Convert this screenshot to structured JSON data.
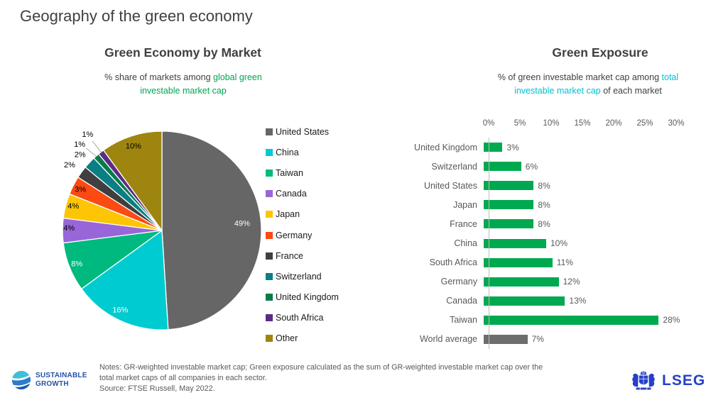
{
  "page": {
    "title": "Geography of the green economy"
  },
  "pie_panel": {
    "title": "Green Economy by Market",
    "subtitle_prefix": "% share of markets among ",
    "subtitle_highlight": "global green investable market cap",
    "highlight_color": "#00A651"
  },
  "bar_panel": {
    "title": "Green Exposure",
    "subtitle_prefix": "% of green investable market cap among ",
    "subtitle_highlight": "total investable market cap",
    "subtitle_suffix": " of each market",
    "highlight_color": "#00C1D4"
  },
  "chart_data": [
    {
      "type": "pie",
      "title": "Green Economy by Market",
      "unit": "%",
      "legend_position": "right",
      "slices": [
        {
          "label": "United States",
          "value": 49,
          "color": "#666666"
        },
        {
          "label": "China",
          "value": 16,
          "color": "#00CBD1"
        },
        {
          "label": "Taiwan",
          "value": 8,
          "color": "#00B97E"
        },
        {
          "label": "Canada",
          "value": 4,
          "color": "#9966D9"
        },
        {
          "label": "Japan",
          "value": 4,
          "color": "#FDC504"
        },
        {
          "label": "Germany",
          "value": 3,
          "color": "#FB4A12"
        },
        {
          "label": "France",
          "value": 2,
          "color": "#3F3F3F"
        },
        {
          "label": "Switzerland",
          "value": 2,
          "color": "#0B7D85"
        },
        {
          "label": "United Kingdom",
          "value": 1,
          "color": "#077C4B"
        },
        {
          "label": "South Africa",
          "value": 1,
          "color": "#5B2C86"
        },
        {
          "label": "Other",
          "value": 10,
          "color": "#9E850F"
        }
      ]
    },
    {
      "type": "bar",
      "title": "Green Exposure",
      "orientation": "horizontal",
      "categories": [
        "United Kingdom",
        "Switzerland",
        "United States",
        "Japan",
        "France",
        "China",
        "South Africa",
        "Germany",
        "Canada",
        "Taiwan",
        "World average"
      ],
      "values": [
        3,
        6,
        8,
        8,
        8,
        10,
        11,
        12,
        13,
        28,
        7
      ],
      "value_labels": [
        "3%",
        "6%",
        "8%",
        "8%",
        "8%",
        "10%",
        "11%",
        "12%",
        "13%",
        "28%",
        "7%"
      ],
      "bar_color": "#00A950",
      "world_average_color": "#6D6D6D",
      "x_ticks": [
        "0%",
        "5%",
        "10%",
        "15%",
        "20%",
        "25%",
        "30%"
      ],
      "xlim": [
        0,
        30
      ],
      "grid": false
    }
  ],
  "footer": {
    "notes_line1": "Notes: GR-weighted investable market cap; Green exposure calculated as the sum of GR-weighted investable market cap over the",
    "notes_line2": "total market caps of all companies in each sector.",
    "source_line": "Source: FTSE Russell, May 2022.",
    "left_logo_line1": "SUSTAINABLE",
    "left_logo_line2": "GROWTH",
    "right_logo_text": "LSEG"
  }
}
